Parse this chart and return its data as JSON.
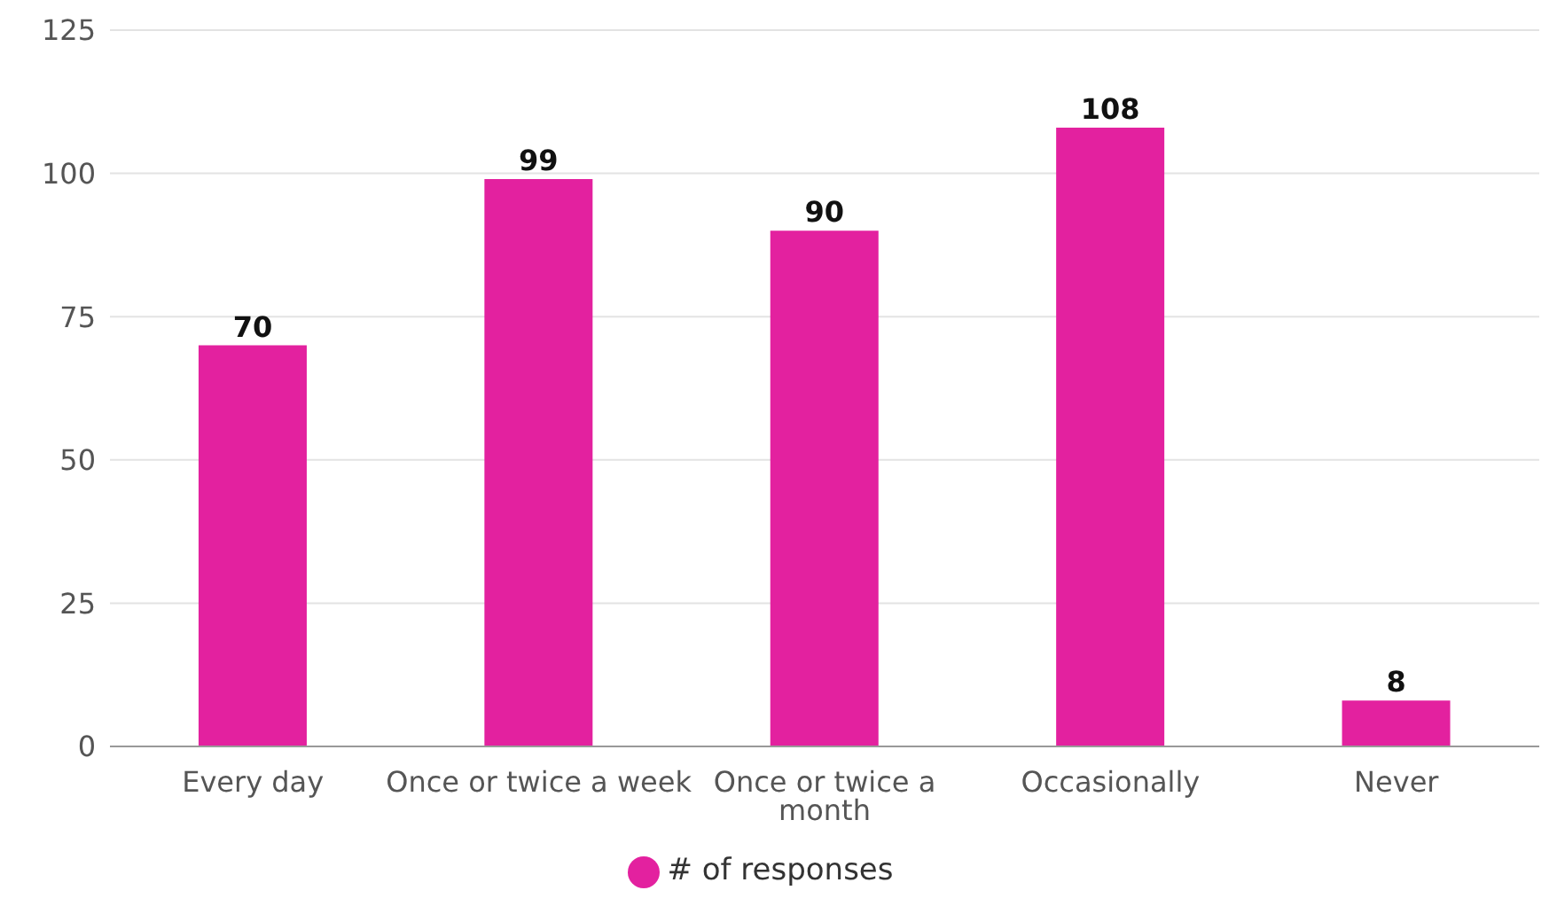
{
  "chart_data": {
    "type": "bar",
    "categories": [
      "Every day",
      "Once or twice a week",
      "Once or twice a month",
      "Occasionally",
      "Never"
    ],
    "series": [
      {
        "name": "# of responses",
        "color": "#e3219f",
        "values": [
          70,
          99,
          90,
          108,
          8
        ]
      }
    ],
    "ylim": [
      0,
      125
    ],
    "yticks": [
      0,
      25,
      50,
      75,
      100,
      125
    ],
    "grid": "y",
    "legend": "bottom",
    "data_labels": true
  }
}
